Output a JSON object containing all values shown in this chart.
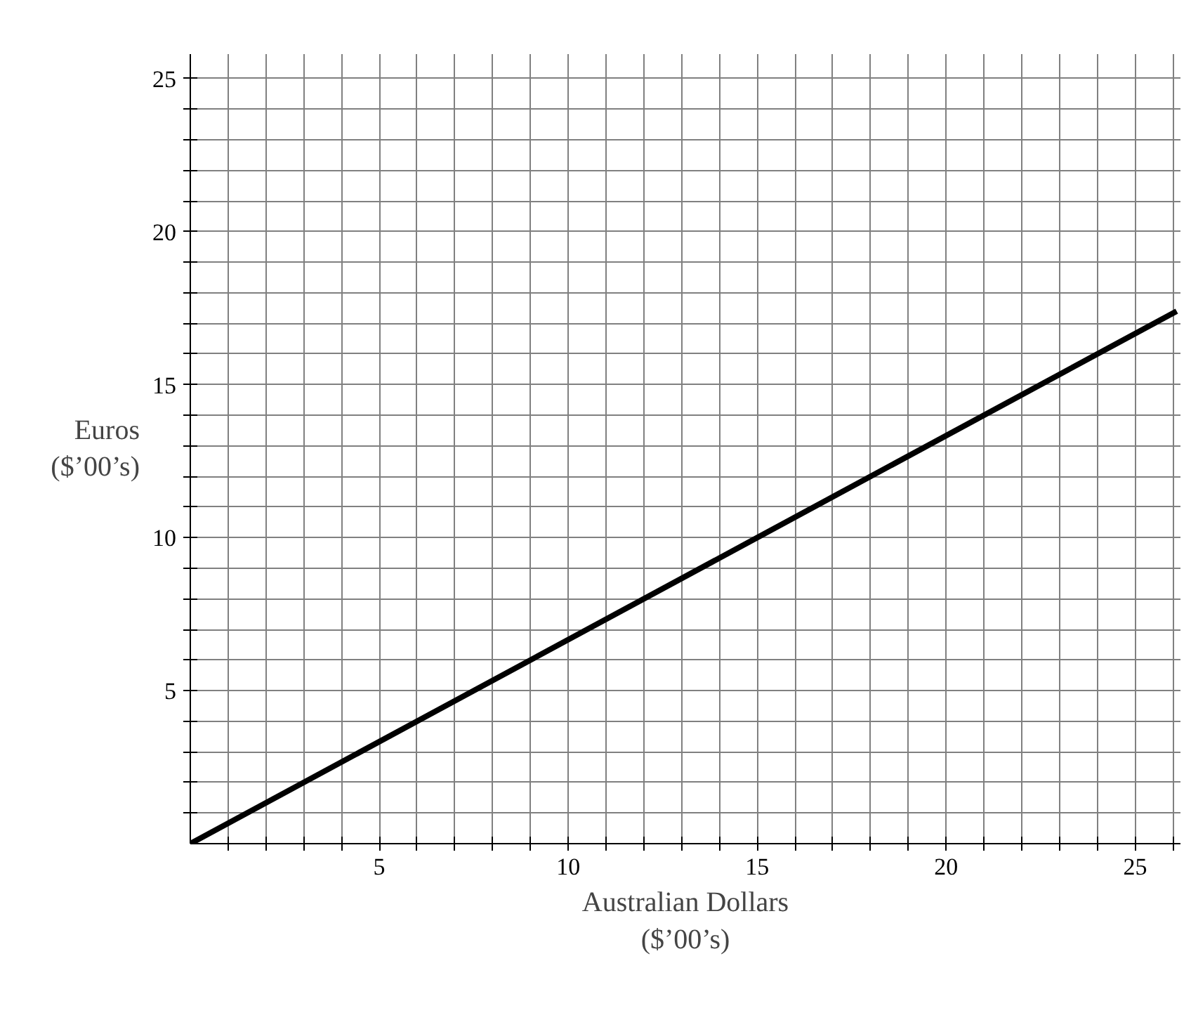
{
  "chart_data": {
    "type": "line",
    "xlabel": "Australian Dollars\n($’00’s)",
    "ylabel": "Euros\n($’00’s)",
    "x": [
      0,
      26.1
    ],
    "series": [
      {
        "color": "#000000",
        "values": [
          0,
          17.4
        ]
      }
    ],
    "xlim": [
      0,
      26.2
    ],
    "ylim": [
      0,
      25.8
    ],
    "xticks": [
      {
        "value": 1,
        "label": null
      },
      {
        "value": 2,
        "label": null
      },
      {
        "value": 3,
        "label": null
      },
      {
        "value": 4,
        "label": null
      },
      5,
      {
        "value": 6,
        "label": null
      },
      {
        "value": 7,
        "label": null
      },
      {
        "value": 8,
        "label": null
      },
      {
        "value": 9,
        "label": null
      },
      10,
      {
        "value": 11,
        "label": null
      },
      {
        "value": 12,
        "label": null
      },
      {
        "value": 13,
        "label": null
      },
      {
        "value": 14,
        "label": null
      },
      15,
      {
        "value": 16,
        "label": null
      },
      {
        "value": 17,
        "label": null
      },
      {
        "value": 18,
        "label": null
      },
      {
        "value": 19,
        "label": null
      },
      20,
      {
        "value": 21,
        "label": null
      },
      {
        "value": 22,
        "label": null
      },
      {
        "value": 23,
        "label": null
      },
      {
        "value": 24,
        "label": null
      },
      25,
      {
        "value": 26,
        "label": null
      }
    ],
    "yticks": [
      {
        "value": 1,
        "label": null
      },
      {
        "value": 2,
        "label": null
      },
      {
        "value": 3,
        "label": null
      },
      {
        "value": 4,
        "label": null
      },
      5,
      {
        "value": 6,
        "label": null
      },
      {
        "value": 7,
        "label": null
      },
      {
        "value": 8,
        "label": null
      },
      {
        "value": 9,
        "label": null
      },
      10,
      {
        "value": 11,
        "label": null
      },
      {
        "value": 12,
        "label": null
      },
      {
        "value": 13,
        "label": null
      },
      {
        "value": 14,
        "label": null
      },
      15,
      {
        "value": 16,
        "label": null
      },
      {
        "value": 17,
        "label": null
      },
      {
        "value": 18,
        "label": null
      },
      {
        "value": 19,
        "label": null
      },
      20,
      {
        "value": 21,
        "label": null
      },
      {
        "value": 22,
        "label": null
      },
      {
        "value": 23,
        "label": null
      },
      {
        "value": 24,
        "label": null
      },
      25
    ],
    "grid": true,
    "line_style": "solid"
  }
}
